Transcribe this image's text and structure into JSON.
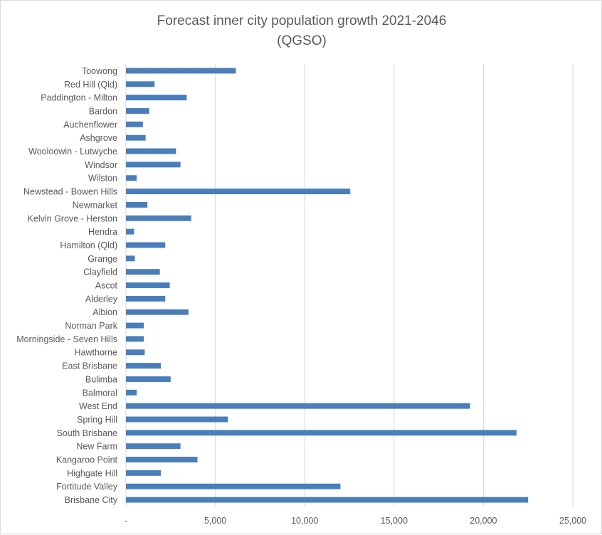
{
  "chart_data": {
    "type": "bar",
    "orientation": "horizontal",
    "title_line1": "Forecast inner city population growth 2021-2046",
    "title_line2": "(QGSO)",
    "xlabel": "",
    "ylabel": "",
    "xlim": [
      0,
      25000
    ],
    "xticks": [
      0,
      5000,
      10000,
      15000,
      20000,
      25000
    ],
    "xtick_labels": [
      "-",
      "5,000",
      "10,000",
      "15,000",
      "20,000",
      "25,000"
    ],
    "grid": true,
    "legend": "none",
    "bar_color": "#4a7ebb",
    "categories": [
      "Toowong",
      "Red Hill (Qld)",
      "Paddington - Milton",
      "Bardon",
      "Auchenflower",
      "Ashgrove",
      "Wooloowin - Lutwyche",
      "Windsor",
      "Wilston",
      "Newstead - Bowen Hills",
      "Newmarket",
      "Kelvin Grove - Herston",
      "Hendra",
      "Hamilton (Qld)",
      "Grange",
      "Clayfield",
      "Ascot",
      "Alderley",
      "Albion",
      "Norman Park",
      "Morningside - Seven Hills",
      "Hawthorne",
      "East Brisbane",
      "Bulimba",
      "Balmoral",
      "West End",
      "Spring Hill",
      "South Brisbane",
      "New Farm",
      "Kangaroo Point",
      "Highgate Hill",
      "Fortitude Valley",
      "Brisbane City"
    ],
    "values": [
      6150,
      1600,
      3400,
      1300,
      950,
      1100,
      2800,
      3050,
      600,
      12550,
      1200,
      3650,
      450,
      2200,
      500,
      1900,
      2450,
      2200,
      3500,
      1000,
      1000,
      1050,
      1950,
      2500,
      600,
      19250,
      5700,
      21850,
      3050,
      4000,
      1950,
      12000,
      22500
    ]
  }
}
